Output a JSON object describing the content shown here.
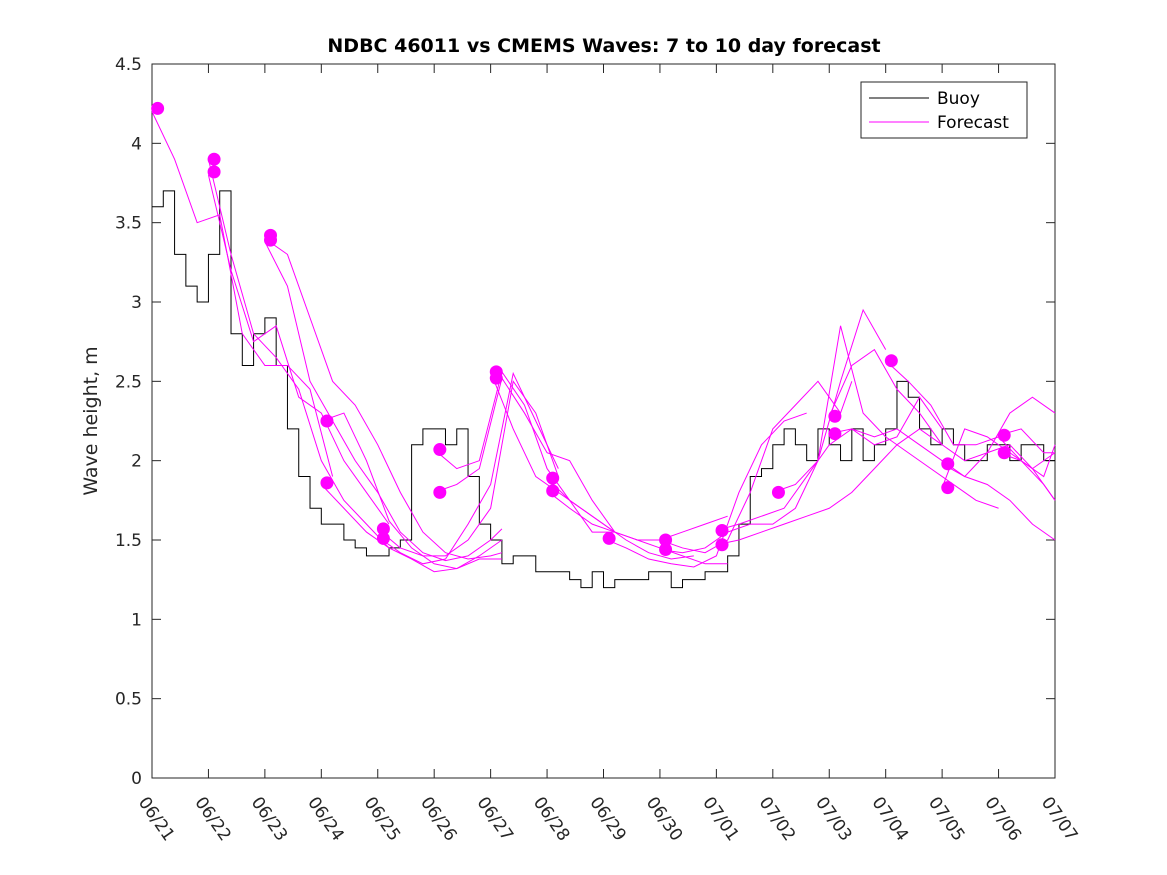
{
  "chart_data": {
    "type": "line",
    "title": "NDBC 46011 vs CMEMS Waves: 7 to 10 day forecast",
    "xlabel": "",
    "ylabel": "Wave height, m",
    "x_ticks": [
      "06/21",
      "06/22",
      "06/23",
      "06/24",
      "06/25",
      "06/26",
      "06/27",
      "06/28",
      "06/29",
      "06/30",
      "07/01",
      "07/02",
      "07/03",
      "07/04",
      "07/05",
      "07/06",
      "07/07"
    ],
    "y_ticks": [
      "0",
      "0.5",
      "1",
      "1.5",
      "2",
      "2.5",
      "3",
      "3.5",
      "4",
      "4.5"
    ],
    "xlim": [
      0,
      16
    ],
    "ylim": [
      0,
      4.5
    ],
    "grid": false,
    "legend_position": "top-right",
    "colors": {
      "buoy": "#000000",
      "forecast": "#ff00ff"
    },
    "series": [
      {
        "name": "Buoy",
        "x": [
          0,
          0.2,
          0.4,
          0.6,
          0.8,
          1.0,
          1.2,
          1.4,
          1.6,
          1.8,
          2.0,
          2.2,
          2.4,
          2.6,
          2.8,
          3.0,
          3.2,
          3.4,
          3.6,
          3.8,
          4.0,
          4.2,
          4.4,
          4.6,
          4.8,
          5.0,
          5.2,
          5.4,
          5.6,
          5.8,
          6.0,
          6.2,
          6.4,
          6.6,
          6.8,
          7.0,
          7.2,
          7.4,
          7.6,
          7.8,
          8.0,
          8.2,
          8.4,
          8.6,
          8.8,
          9.0,
          9.2,
          9.4,
          9.6,
          9.8,
          10.0,
          10.2,
          10.4,
          10.6,
          10.8,
          11.0,
          11.2,
          11.4,
          11.6,
          11.8,
          12.0,
          12.2,
          12.4,
          12.6,
          12.8,
          13.0,
          13.2,
          13.4,
          13.6,
          13.8,
          14.0,
          14.2,
          14.4,
          14.6,
          14.8,
          15.0,
          15.2,
          15.4,
          15.6,
          15.8,
          16.0
        ],
        "values": [
          3.6,
          3.7,
          3.3,
          3.1,
          3.0,
          3.3,
          3.7,
          2.8,
          2.6,
          2.8,
          2.9,
          2.6,
          2.2,
          1.9,
          1.7,
          1.6,
          1.6,
          1.5,
          1.45,
          1.4,
          1.4,
          1.45,
          1.5,
          2.1,
          2.2,
          2.2,
          2.1,
          2.2,
          1.9,
          1.6,
          1.5,
          1.35,
          1.4,
          1.4,
          1.3,
          1.3,
          1.3,
          1.25,
          1.2,
          1.3,
          1.2,
          1.25,
          1.25,
          1.25,
          1.3,
          1.3,
          1.2,
          1.25,
          1.25,
          1.3,
          1.3,
          1.4,
          1.6,
          1.9,
          1.95,
          2.1,
          2.2,
          2.1,
          2.0,
          2.2,
          2.1,
          2.0,
          2.2,
          2.0,
          2.1,
          2.2,
          2.5,
          2.4,
          2.2,
          2.1,
          2.2,
          2.1,
          2.0,
          2.0,
          2.1,
          2.1,
          2.0,
          2.1,
          2.1,
          2.0,
          2.0
        ]
      },
      {
        "name": "Forecast",
        "lines": [
          {
            "x": [
              0,
              0.4,
              0.8,
              1.2,
              1.6,
              2.0,
              2.4,
              2.8,
              3.2
            ],
            "values": [
              4.2,
              3.9,
              3.5,
              3.55,
              2.8,
              2.6,
              2.6,
              2.45,
              1.9
            ]
          },
          {
            "x": [
              1,
              1.4,
              1.8,
              2.2,
              2.6,
              3.0,
              3.4,
              3.8,
              4.2
            ],
            "values": [
              3.9,
              3.3,
              2.8,
              2.65,
              2.45,
              2.0,
              1.75,
              1.6,
              1.45
            ]
          },
          {
            "x": [
              1,
              1.4,
              1.8,
              2.2,
              2.6,
              3.0,
              3.4,
              3.8,
              4.2
            ],
            "values": [
              3.8,
              3.2,
              2.75,
              2.85,
              2.4,
              2.3,
              2.0,
              1.8,
              1.6
            ]
          },
          {
            "x": [
              2,
              2.4,
              2.8,
              3.2,
              3.6,
              4.0,
              4.4,
              4.8,
              5.2,
              5.6,
              6.0,
              6.2
            ],
            "values": [
              3.4,
              3.3,
              2.9,
              2.5,
              2.35,
              2.1,
              1.8,
              1.55,
              1.42,
              1.38,
              1.4,
              1.42
            ]
          },
          {
            "x": [
              2,
              2.4,
              2.8,
              3.2,
              3.6,
              4.0,
              4.4,
              4.8,
              5.2,
              5.6,
              6.0,
              6.2
            ],
            "values": [
              3.38,
              3.1,
              2.5,
              2.25,
              2.0,
              1.8,
              1.55,
              1.42,
              1.37,
              1.4,
              1.5,
              1.57
            ]
          },
          {
            "x": [
              3,
              3.4,
              3.8,
              4.2,
              4.6,
              5.0,
              5.4,
              5.8,
              6.2
            ],
            "values": [
              2.25,
              2.3,
              2.0,
              1.62,
              1.45,
              1.35,
              1.32,
              1.38,
              1.38
            ]
          },
          {
            "x": [
              3,
              3.4,
              3.8,
              4.2,
              4.6,
              5.0,
              5.4,
              5.8,
              6.2
            ],
            "values": [
              1.85,
              1.7,
              1.55,
              1.45,
              1.38,
              1.3,
              1.32,
              1.4,
              1.5
            ]
          },
          {
            "x": [
              4,
              4.4,
              4.8,
              5.2,
              5.6,
              6.0,
              6.4,
              6.8,
              7.2
            ],
            "values": [
              1.57,
              1.45,
              1.4,
              1.4,
              1.5,
              1.7,
              2.5,
              2.3,
              1.9
            ]
          },
          {
            "x": [
              4,
              4.4,
              4.8,
              5.2,
              5.6,
              6.0,
              6.4,
              6.8,
              7.2
            ],
            "values": [
              1.52,
              1.42,
              1.35,
              1.38,
              1.6,
              1.85,
              2.55,
              2.25,
              1.95
            ]
          },
          {
            "x": [
              5,
              5.4,
              5.8,
              6.2,
              6.6,
              7.0,
              7.4,
              7.8,
              8.2
            ],
            "values": [
              2.07,
              1.95,
              2.0,
              2.56,
              2.35,
              1.95,
              1.75,
              1.55,
              1.55
            ]
          },
          {
            "x": [
              5,
              5.4,
              5.8,
              6.2,
              6.6,
              7.0,
              7.4,
              7.8,
              8.2
            ],
            "values": [
              1.8,
              1.85,
              1.95,
              2.52,
              2.3,
              2.05,
              2.0,
              1.75,
              1.55
            ]
          },
          {
            "x": [
              6,
              6.4,
              6.8,
              7.2,
              7.6,
              8.0,
              8.4,
              8.8,
              9.2,
              9.6
            ],
            "values": [
              2.56,
              2.2,
              1.9,
              1.8,
              1.7,
              1.6,
              1.5,
              1.42,
              1.38,
              1.4
            ]
          },
          {
            "x": [
              7,
              7.4,
              7.8,
              8.2,
              8.6,
              9.0,
              9.4,
              9.8,
              10.2
            ],
            "values": [
              1.89,
              1.75,
              1.65,
              1.55,
              1.5,
              1.5,
              1.55,
              1.6,
              1.65
            ]
          },
          {
            "x": [
              7,
              7.4,
              7.8,
              8.2,
              8.6,
              9.0,
              9.4,
              9.8,
              10.2
            ],
            "values": [
              1.81,
              1.7,
              1.6,
              1.55,
              1.5,
              1.45,
              1.4,
              1.35,
              1.35
            ]
          },
          {
            "x": [
              8,
              8.4,
              8.8,
              9.2,
              9.6,
              10.0,
              10.4,
              10.8,
              11.2,
              11.6
            ],
            "values": [
              1.51,
              1.45,
              1.38,
              1.35,
              1.33,
              1.4,
              1.8,
              2.1,
              2.25,
              2.3
            ]
          },
          {
            "x": [
              9,
              9.4,
              9.8,
              10.2,
              10.6,
              11.0,
              11.4,
              11.8,
              12.2,
              12.4
            ],
            "values": [
              1.5,
              1.45,
              1.42,
              1.5,
              1.8,
              2.2,
              2.35,
              2.5,
              2.3,
              2.5
            ]
          },
          {
            "x": [
              9,
              9.4,
              9.8,
              10.2,
              10.6,
              11.0,
              11.4,
              11.8,
              12.2,
              12.6,
              13.0
            ],
            "values": [
              1.44,
              1.42,
              1.45,
              1.55,
              1.6,
              1.6,
              1.7,
              2.0,
              2.5,
              2.95,
              2.7
            ]
          },
          {
            "x": [
              10,
              10.4,
              10.8,
              11.2,
              11.6,
              12.0,
              12.4,
              12.8,
              13.2,
              13.6,
              14.0
            ],
            "values": [
              1.56,
              1.6,
              1.65,
              1.7,
              1.9,
              2.1,
              2.2,
              2.1,
              2.15,
              2.4,
              2.2
            ]
          },
          {
            "x": [
              10,
              10.4,
              10.8,
              11.2,
              11.6,
              12.0,
              12.4,
              12.8,
              13.2,
              13.6,
              14.0
            ],
            "values": [
              1.47,
              1.5,
              1.55,
              1.6,
              1.65,
              1.7,
              1.8,
              1.95,
              2.1,
              2.2,
              2.1
            ]
          },
          {
            "x": [
              11,
              11.4,
              11.8,
              12.2,
              12.6,
              13.0,
              13.4,
              13.8,
              14.2,
              14.6,
              15.0
            ],
            "values": [
              1.8,
              1.85,
              2.0,
              2.85,
              2.3,
              2.15,
              2.05,
              1.95,
              1.85,
              1.75,
              1.7
            ]
          },
          {
            "x": [
              12,
              12.4,
              12.8,
              13.2,
              13.6,
              14.0,
              14.4,
              14.8,
              15.2,
              15.6,
              16.0
            ],
            "values": [
              2.28,
              2.6,
              2.7,
              2.45,
              2.3,
              2.1,
              2.0,
              2.05,
              2.3,
              2.4,
              2.3
            ]
          },
          {
            "x": [
              12,
              12.4,
              12.8,
              13.2,
              13.6,
              14.0,
              14.4,
              14.8,
              15.2,
              15.6,
              16.0
            ],
            "values": [
              2.17,
              2.2,
              2.15,
              2.2,
              2.1,
              2.0,
              1.9,
              2.05,
              2.1,
              1.95,
              2.05
            ]
          },
          {
            "x": [
              13,
              13.4,
              13.8,
              14.2,
              14.6,
              15.0,
              15.4,
              15.8,
              16.0
            ],
            "values": [
              2.63,
              2.5,
              2.35,
              2.1,
              2.1,
              2.15,
              2.0,
              1.85,
              1.75
            ]
          },
          {
            "x": [
              14,
              14.4,
              14.8,
              15.2,
              15.6,
              16.0
            ],
            "values": [
              1.98,
              1.9,
              1.85,
              1.75,
              1.6,
              1.5
            ]
          },
          {
            "x": [
              14,
              14.4,
              14.8,
              15.2,
              15.6,
              16.0
            ],
            "values": [
              1.83,
              2.2,
              2.15,
              2.05,
              1.95,
              1.75
            ]
          },
          {
            "x": [
              15,
              15.4,
              15.8,
              16.0
            ],
            "values": [
              2.16,
              2.2,
              2.05,
              2.05
            ]
          },
          {
            "x": [
              15,
              15.4,
              15.8,
              16.0
            ],
            "values": [
              2.05,
              2.0,
              1.9,
              2.1
            ]
          }
        ],
        "markers": [
          {
            "x": 0.1,
            "y": 4.22
          },
          {
            "x": 1.1,
            "y": 3.9
          },
          {
            "x": 1.1,
            "y": 3.82
          },
          {
            "x": 2.1,
            "y": 3.42
          },
          {
            "x": 2.1,
            "y": 3.39
          },
          {
            "x": 3.1,
            "y": 2.25
          },
          {
            "x": 3.1,
            "y": 1.86
          },
          {
            "x": 4.1,
            "y": 1.57
          },
          {
            "x": 4.1,
            "y": 1.51
          },
          {
            "x": 5.1,
            "y": 2.07
          },
          {
            "x": 5.1,
            "y": 1.8
          },
          {
            "x": 6.1,
            "y": 2.56
          },
          {
            "x": 6.1,
            "y": 2.52
          },
          {
            "x": 7.1,
            "y": 1.89
          },
          {
            "x": 7.1,
            "y": 1.81
          },
          {
            "x": 8.1,
            "y": 1.51
          },
          {
            "x": 9.1,
            "y": 1.5
          },
          {
            "x": 9.1,
            "y": 1.44
          },
          {
            "x": 10.1,
            "y": 1.56
          },
          {
            "x": 10.1,
            "y": 1.47
          },
          {
            "x": 11.1,
            "y": 1.8
          },
          {
            "x": 12.1,
            "y": 2.28
          },
          {
            "x": 12.1,
            "y": 2.17
          },
          {
            "x": 13.1,
            "y": 2.63
          },
          {
            "x": 14.1,
            "y": 1.98
          },
          {
            "x": 14.1,
            "y": 1.83
          },
          {
            "x": 15.1,
            "y": 2.16
          },
          {
            "x": 15.1,
            "y": 2.05
          }
        ]
      }
    ]
  }
}
